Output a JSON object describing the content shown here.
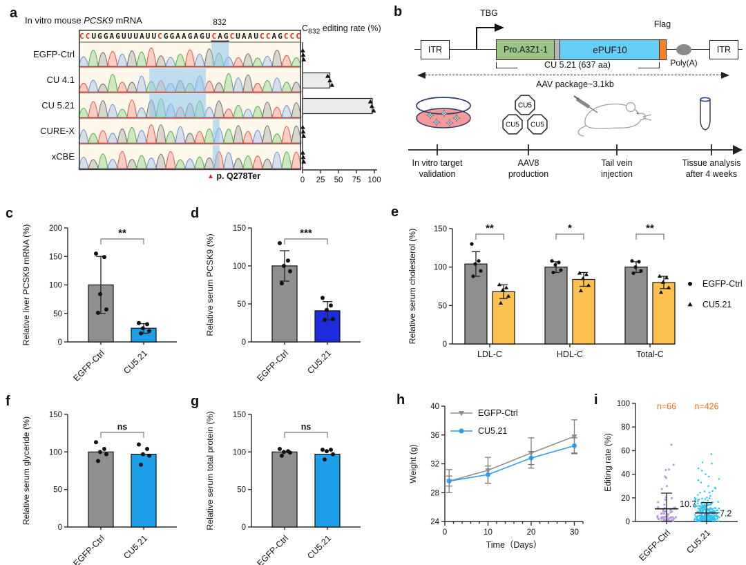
{
  "figure": {
    "background": "#ffffff"
  },
  "palette": {
    "gray_bar": "#8f8f8f",
    "blue_light": "#1c9fe8",
    "blue_royal": "#1f2bdf",
    "orange_bar": "#fcc14e",
    "scatter_purple": "#b59ae2",
    "scatter_cyan": "#2cc6f4",
    "n_orange": "#e8741e",
    "seq_red": "#e02d28",
    "highlight_blue": "#8ec7f2"
  },
  "panels": {
    "a": {
      "letter": "a",
      "title_pre": "In vitro mouse ",
      "title_gene": "PCSK9",
      "title_post": " mRNA",
      "position_label": "832",
      "sequence": "CCUGGAGUUUAUUCGGAAGAGUCAGCUAAUCCAGCCC",
      "underline": [
        22,
        25
      ],
      "rows": [
        {
          "label": "EGFP-Ctrl",
          "highlight": [
            0.597,
            0.675
          ]
        },
        {
          "label": "CU 4.1",
          "highlight": [
            0.318,
            0.572
          ]
        },
        {
          "label": "CU 5.21",
          "highlight": [
            0.318,
            0.572
          ]
        },
        {
          "label": "CURE-X",
          "highlight": [
            0.602,
            0.633
          ]
        },
        {
          "label": "xCBE",
          "highlight": [
            0.602,
            0.633
          ]
        }
      ],
      "editing_title_pre": "C",
      "editing_title_sub": "832",
      "editing_title_post": " editing rate (%)",
      "mutation_label": "p. Q278Ter"
    },
    "b": {
      "letter": "b",
      "itr": "ITR",
      "tbg": "TBG",
      "pro": "Pro.A3Z1-1",
      "epuf": "ePUF10",
      "flag": "Flag",
      "polya": "Poly(A)",
      "cu_label": "CU 5.21 (637 aa)",
      "aav_label": "AAV package~3.1kb",
      "virus_label": "CU5",
      "steps": [
        {
          "line1": "In vitro target",
          "line2": "validation"
        },
        {
          "line1": "AAV8",
          "line2": "production"
        },
        {
          "line1": "Tail vein",
          "line2": "injection"
        },
        {
          "line1": "Tissue analysis",
          "line2": "after 4 weeks"
        }
      ]
    },
    "c": {
      "letter": "c"
    },
    "d": {
      "letter": "d"
    },
    "e": {
      "letter": "e"
    },
    "f": {
      "letter": "f"
    },
    "g": {
      "letter": "g"
    },
    "h": {
      "letter": "h"
    },
    "i": {
      "letter": "i"
    }
  },
  "chart_data": [
    {
      "id": "chart-a-editing",
      "type": "hbar",
      "title": "C832 editing rate (%)",
      "xlim": [
        0,
        100
      ],
      "xticks": [
        0,
        25,
        50,
        75,
        100
      ],
      "categories": [
        "EGFP-Ctrl",
        "CU 4.1",
        "CU 5.21",
        "CURE-X",
        "xCBE"
      ],
      "values": [
        0.8,
        38,
        97,
        0.8,
        0.8
      ],
      "points": [
        [
          0.3,
          0.9,
          1.6
        ],
        [
          35,
          38,
          41
        ],
        [
          94.5,
          96.5,
          99
        ],
        [
          0.3,
          0.9,
          1.6
        ],
        [
          0.3,
          0.9,
          1.6
        ]
      ],
      "bar_fill": "#ebebeb"
    },
    {
      "id": "chart-c",
      "type": "bar-dots",
      "ylabel": "Relative liver PCSK9 mRNA (%)",
      "ylim": [
        0,
        200
      ],
      "yticks": [
        0,
        50,
        100,
        150,
        200
      ],
      "sig": "**",
      "categories": [
        "EGFP-Ctrl",
        "CU5.21"
      ],
      "bars": [
        {
          "value": 100,
          "color": "#8f8f8f",
          "err": [
            50,
            150
          ],
          "dots": [
            155,
            149,
            84,
            57,
            51
          ]
        },
        {
          "value": 24,
          "color": "#1c9fe8",
          "err": [
            15,
            32
          ],
          "dots": [
            33,
            31,
            24,
            19,
            15
          ]
        }
      ]
    },
    {
      "id": "chart-d",
      "type": "bar-dots",
      "ylabel": "Relative serum PCSK9 (%)",
      "ylim": [
        0,
        150
      ],
      "yticks": [
        0,
        50,
        100,
        150
      ],
      "sig": "***",
      "categories": [
        "EGFP-Ctrl",
        "CU5.21"
      ],
      "bars": [
        {
          "value": 100,
          "color": "#8f8f8f",
          "err": [
            80,
            120
          ],
          "dots": [
            130,
            107,
            100,
            93,
            77
          ]
        },
        {
          "value": 41,
          "color": "#1f2bdf",
          "err": [
            29,
            53
          ],
          "dots": [
            58,
            48,
            42,
            30,
            29
          ]
        }
      ]
    },
    {
      "id": "chart-e",
      "type": "grouped-bar-dots",
      "ylabel": "Relative serum cholesterol (%)",
      "ylim": [
        0,
        150
      ],
      "yticks": [
        0,
        50,
        100,
        150
      ],
      "categories": [
        "LDL-C",
        "HDL-C",
        "Total-C"
      ],
      "sigs": [
        "**",
        "*",
        "**"
      ],
      "series": [
        {
          "name": "EGFP-Ctrl",
          "color": "#8f8f8f",
          "marker": "circle",
          "values": [
            104,
            100,
            100
          ],
          "err": [
            [
              88,
              120
            ],
            [
              93,
              107
            ],
            [
              93,
              107
            ]
          ],
          "dots": [
            [
              130,
              108,
              104,
              95,
              88
            ],
            [
              108,
              106,
              103,
              96,
              93
            ],
            [
              108,
              107,
              100,
              95,
              92
            ]
          ]
        },
        {
          "name": "CU5.21",
          "color": "#fcc14e",
          "marker": "triangle",
          "values": [
            68,
            84,
            80
          ],
          "err": [
            [
              59,
              77
            ],
            [
              75,
              93
            ],
            [
              72,
              88
            ]
          ],
          "dots": [
            [
              77,
              73,
              70,
              62,
              53
            ],
            [
              92,
              90,
              85,
              76,
              69
            ],
            [
              88,
              86,
              80,
              73,
              67
            ]
          ]
        }
      ]
    },
    {
      "id": "chart-f",
      "type": "bar-dots",
      "ylabel": "Relative serum glyceride (%)",
      "ylim": [
        0,
        150
      ],
      "yticks": [
        0,
        50,
        100,
        150
      ],
      "sig": "ns",
      "categories": [
        "EGFP-Ctrl",
        "CU5.21"
      ],
      "bars": [
        {
          "value": 100,
          "color": "#8f8f8f",
          "dots": [
            113,
            104,
            100,
            97,
            88
          ]
        },
        {
          "value": 97,
          "color": "#1c9fe8",
          "dots": [
            110,
            104,
            97,
            95,
            83
          ]
        }
      ]
    },
    {
      "id": "chart-g",
      "type": "bar-dots",
      "ylabel": "Relative serum total protein (%)",
      "ylim": [
        0,
        150
      ],
      "yticks": [
        0,
        50,
        100,
        150
      ],
      "sig": "ns",
      "categories": [
        "EGFP-Ctrl",
        "CU5.21"
      ],
      "bars": [
        {
          "value": 100,
          "color": "#8f8f8f",
          "dots": [
            104,
            101,
            100,
            99,
            95
          ]
        },
        {
          "value": 97,
          "color": "#1c9fe8",
          "dots": [
            103,
            103,
            101,
            97,
            90
          ]
        }
      ]
    },
    {
      "id": "chart-h",
      "type": "line",
      "ylabel": "Weight (g)",
      "xlabel": "Time（Days）",
      "ylim": [
        24,
        40
      ],
      "yticks": [
        24,
        28,
        32,
        36,
        40
      ],
      "xlim": [
        0,
        32
      ],
      "xticks": [
        0,
        10,
        20,
        30
      ],
      "minor_step": 2,
      "series": [
        {
          "name": "EGFP-Ctrl",
          "color": "#909090",
          "marker": "triangle-down",
          "x": [
            1,
            10,
            20,
            30
          ],
          "y": [
            29.6,
            31.1,
            33.5,
            35.8
          ],
          "err": [
            1.6,
            1.8,
            2.1,
            2.3
          ]
        },
        {
          "name": "CU5.21",
          "color": "#2b9cf2",
          "marker": "circle",
          "x": [
            1,
            10,
            20,
            30
          ],
          "y": [
            29.6,
            30.5,
            32.8,
            34.5
          ],
          "err": [
            0.7,
            1.2,
            0.9,
            1.1
          ]
        }
      ]
    },
    {
      "id": "chart-i",
      "type": "scatter-groups",
      "ylabel": "Editing rate (%)",
      "ylim": [
        0,
        100
      ],
      "yticks": [
        0,
        20,
        40,
        60,
        80,
        100
      ],
      "n_color": "#e8741e",
      "groups": [
        {
          "label": "EGFP-Ctrl",
          "n": 66,
          "n_label": "n=66",
          "mean": 10.7,
          "mean_label": "10.7",
          "err": [
            0,
            24
          ],
          "color": "#b59ae2",
          "max": 66,
          "spread": 8,
          "outliers": [
            65,
            48,
            44,
            38,
            37,
            30
          ]
        },
        {
          "label": "CU5.21",
          "n": 426,
          "n_label": "n=426",
          "mean": 7.2,
          "mean_label": "7.2",
          "err": [
            0,
            16
          ],
          "color": "#2cc6f4",
          "max": 57,
          "spread": 6.2,
          "outliers": [
            57,
            50,
            49,
            45,
            43,
            40,
            38,
            36,
            35,
            33,
            30,
            28
          ]
        }
      ]
    }
  ]
}
